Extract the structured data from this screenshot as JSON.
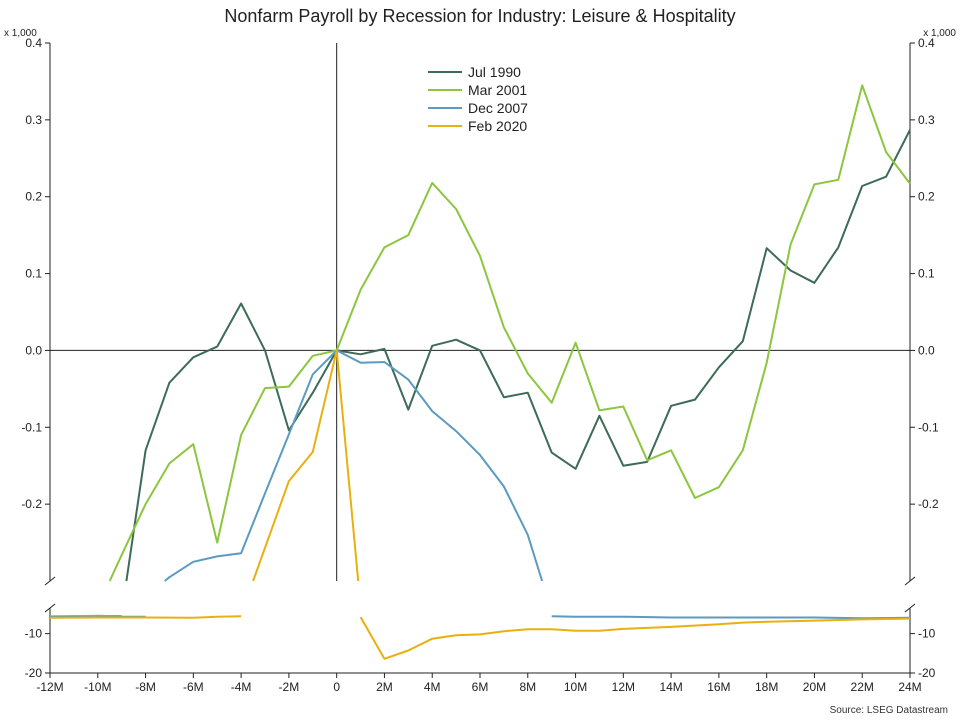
{
  "chart_data": {
    "type": "line",
    "title": "Nonfarm Payroll by Recession for Industry: Leisure & Hospitality",
    "source": "Source: LSEG Datastream",
    "unit_left": "x 1,000",
    "unit_right": "x 1,000",
    "x_label_months": [
      -12,
      -10,
      -8,
      -6,
      -4,
      -2,
      0,
      2,
      4,
      6,
      8,
      10,
      12,
      14,
      16,
      18,
      20,
      22,
      24
    ],
    "x_tick_labels": [
      "-12M",
      "-10M",
      "-8M",
      "-6M",
      "-4M",
      "-2M",
      "0",
      "2M",
      "4M",
      "6M",
      "8M",
      "10M",
      "12M",
      "14M",
      "16M",
      "18M",
      "20M",
      "22M",
      "24M"
    ],
    "upper_panel": {
      "ylim": [
        -0.3,
        0.4
      ],
      "tick_values": [
        0.4,
        0.3,
        0.2,
        0.1,
        0.0,
        -0.1,
        -0.2
      ],
      "tick_labels": [
        "0.4",
        "0.3",
        "0.2",
        "0.1",
        "0.0",
        "-0.1",
        "-0.2"
      ]
    },
    "lower_panel": {
      "ylim": [
        -20,
        -3.5
      ],
      "tick_values": [
        -10,
        -20
      ],
      "tick_labels": [
        "-10",
        "-20"
      ]
    },
    "legend_position": "top-center",
    "series": [
      {
        "name": "Jul 1990",
        "color": "#3d6b57",
        "upper": [
          [
            -8.8,
            -0.3
          ],
          [
            -8,
            -0.13
          ],
          [
            -7,
            -0.042
          ],
          [
            -6,
            -0.009
          ],
          [
            -5,
            0.005
          ],
          [
            -4,
            0.061
          ],
          [
            -3,
            0.0
          ],
          [
            -2,
            -0.104
          ],
          [
            -1,
            -0.055
          ],
          [
            0,
            0.0
          ],
          [
            1,
            -0.005
          ],
          [
            2,
            0.002
          ],
          [
            3,
            -0.077
          ],
          [
            4,
            0.006
          ],
          [
            5,
            0.014
          ],
          [
            6,
            0.0
          ],
          [
            7,
            -0.061
          ],
          [
            8,
            -0.055
          ],
          [
            9,
            -0.133
          ],
          [
            10,
            -0.154
          ],
          [
            11,
            -0.085
          ],
          [
            12,
            -0.15
          ],
          [
            13,
            -0.145
          ],
          [
            14,
            -0.072
          ],
          [
            15,
            -0.064
          ],
          [
            16,
            -0.022
          ],
          [
            17,
            0.012
          ],
          [
            18,
            0.133
          ],
          [
            19,
            0.104
          ],
          [
            20,
            0.088
          ],
          [
            21,
            0.134
          ],
          [
            22,
            0.214
          ],
          [
            23,
            0.226
          ],
          [
            24,
            0.287
          ]
        ],
        "lower": [
          [
            -12,
            -5.7
          ],
          [
            -10,
            -5.5
          ],
          [
            -9,
            -5.6
          ]
        ]
      },
      {
        "name": "Mar 2001",
        "color": "#8cc63f",
        "upper": [
          [
            -9.5,
            -0.3
          ],
          [
            -9,
            -0.266
          ],
          [
            -8,
            -0.2
          ],
          [
            -7,
            -0.147
          ],
          [
            -6,
            -0.122
          ],
          [
            -5,
            -0.25
          ],
          [
            -4,
            -0.11
          ],
          [
            -3,
            -0.049
          ],
          [
            -2,
            -0.047
          ],
          [
            -1,
            -0.007
          ],
          [
            0,
            0.0
          ],
          [
            1,
            0.079
          ],
          [
            2,
            0.134
          ],
          [
            3,
            0.15
          ],
          [
            4,
            0.218
          ],
          [
            5,
            0.184
          ],
          [
            6,
            0.123
          ],
          [
            7,
            0.03
          ],
          [
            8,
            -0.03
          ],
          [
            9,
            -0.068
          ],
          [
            10,
            0.01
          ],
          [
            11,
            -0.078
          ],
          [
            12,
            -0.073
          ],
          [
            13,
            -0.143
          ],
          [
            14,
            -0.13
          ],
          [
            15,
            -0.192
          ],
          [
            16,
            -0.178
          ],
          [
            17,
            -0.13
          ],
          [
            18,
            -0.016
          ],
          [
            19,
            0.138
          ],
          [
            20,
            0.216
          ],
          [
            21,
            0.222
          ],
          [
            22,
            0.345
          ],
          [
            23,
            0.258
          ],
          [
            24,
            0.217
          ]
        ],
        "lower": [
          [
            -12,
            -5.6
          ],
          [
            -10,
            -5.5
          ],
          [
            -9,
            -5.6
          ]
        ]
      },
      {
        "name": "Dec 2007",
        "color": "#5b9bbf",
        "upper": [
          [
            -7.2,
            -0.3
          ],
          [
            -7,
            -0.295
          ],
          [
            -6,
            -0.275
          ],
          [
            -5,
            -0.268
          ],
          [
            -4,
            -0.264
          ],
          [
            -3,
            -0.186
          ],
          [
            -2,
            -0.109
          ],
          [
            -1,
            -0.031
          ],
          [
            0,
            0.0
          ],
          [
            1,
            -0.016
          ],
          [
            2,
            -0.015
          ],
          [
            3,
            -0.038
          ],
          [
            4,
            -0.079
          ],
          [
            5,
            -0.105
          ],
          [
            6,
            -0.136
          ],
          [
            7,
            -0.177
          ],
          [
            8,
            -0.24
          ],
          [
            8.6,
            -0.3
          ]
        ],
        "lower": [
          [
            -12,
            -5.8
          ],
          [
            -10,
            -5.7
          ],
          [
            -8,
            -5.7
          ],
          [
            9,
            -5.6
          ],
          [
            10,
            -5.7
          ],
          [
            12,
            -5.7
          ],
          [
            14,
            -5.9
          ],
          [
            16,
            -5.9
          ],
          [
            18,
            -5.9
          ],
          [
            20,
            -5.9
          ],
          [
            22,
            -6.1
          ],
          [
            24,
            -6.0
          ]
        ]
      },
      {
        "name": "Feb 2020",
        "color": "#e8b010",
        "upper": [
          [
            -3.5,
            -0.3
          ],
          [
            -2,
            -0.17
          ],
          [
            -1,
            -0.132
          ],
          [
            0,
            0.0
          ],
          [
            0.9,
            -0.3
          ]
        ],
        "lower": [
          [
            -12,
            -6.0
          ],
          [
            -10,
            -5.9
          ],
          [
            -8,
            -5.9
          ],
          [
            -6,
            -6.0
          ],
          [
            -5,
            -5.7
          ],
          [
            -4,
            -5.6
          ],
          [
            1,
            -5.8
          ],
          [
            2,
            -16.4
          ],
          [
            3,
            -14.3
          ],
          [
            4,
            -11.3
          ],
          [
            5,
            -10.4
          ],
          [
            6,
            -10.2
          ],
          [
            7,
            -9.4
          ],
          [
            8,
            -8.9
          ],
          [
            9,
            -8.9
          ],
          [
            10,
            -9.3
          ],
          [
            11,
            -9.3
          ],
          [
            12,
            -8.8
          ],
          [
            14,
            -8.3
          ],
          [
            16,
            -7.6
          ],
          [
            17,
            -7.2
          ],
          [
            18,
            -7.0
          ],
          [
            20,
            -6.7
          ],
          [
            22,
            -6.4
          ],
          [
            23,
            -6.3
          ],
          [
            24,
            -6.2
          ]
        ]
      }
    ]
  }
}
